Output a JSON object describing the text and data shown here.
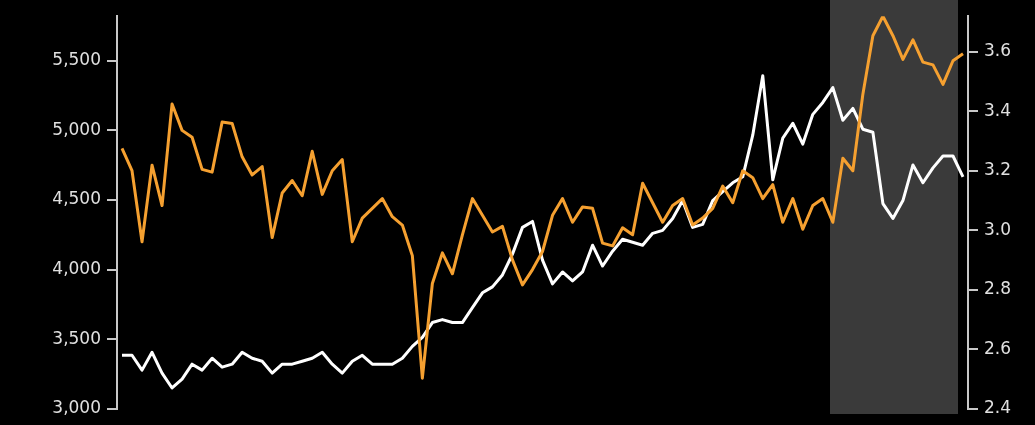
{
  "chart_data": {
    "type": "line",
    "categories": [
      null,
      null,
      null,
      null,
      null,
      null,
      null,
      null,
      null,
      null,
      null,
      null,
      null,
      null,
      null,
      null,
      null,
      null,
      null,
      null,
      null,
      null,
      null,
      null,
      null,
      null,
      null,
      null,
      null,
      null,
      null,
      null,
      null,
      null,
      null,
      null,
      null,
      null,
      null,
      null,
      null,
      null,
      null,
      null,
      null,
      null,
      null,
      null,
      null,
      null,
      null,
      null,
      null,
      null,
      null,
      null,
      null,
      null,
      null,
      null,
      null,
      null,
      null,
      null,
      null,
      null,
      null,
      null,
      null,
      null,
      null,
      null,
      null,
      null,
      null,
      null,
      null,
      null,
      null,
      null,
      null,
      null,
      null,
      null,
      null
    ],
    "ylim": [
      3000,
      5820
    ],
    "yticks": [
      {
        "value": 3000,
        "label": "3,000"
      },
      {
        "value": 3500,
        "label": "3,500"
      },
      {
        "value": 4000,
        "label": "4,000"
      },
      {
        "value": 4500,
        "label": "4,500"
      },
      {
        "value": 5000,
        "label": "5,000"
      },
      {
        "value": 5500,
        "label": "5,500"
      }
    ],
    "y2lim": [
      2.4,
      3.72
    ],
    "y2ticks": [
      2.4,
      2.6,
      2.8,
      {
        "value": 3,
        "label": "3.0"
      },
      3.2,
      3.4,
      3.6
    ],
    "grid": false,
    "legend": false,
    "line_style": "solid",
    "marker": "none",
    "series": [
      {
        "color": "#f5a030",
        "values": [
          4870,
          4710,
          4200,
          4750,
          4460,
          5190,
          5000,
          4950,
          4720,
          4700,
          5060,
          5050,
          4810,
          4680,
          4740,
          4230,
          4550,
          4640,
          4530,
          4850,
          4540,
          4710,
          4790,
          4200,
          4370,
          4440,
          4510,
          4380,
          4320,
          4100,
          3220,
          3900,
          4120,
          3970,
          4250,
          4510,
          4390,
          4270,
          4310,
          4070,
          3890,
          4000,
          4130,
          4390,
          4510,
          4340,
          4450,
          4440,
          4190,
          4170,
          4300,
          4250,
          4620,
          4480,
          4340,
          4460,
          4510,
          4320,
          4370,
          4440,
          4600,
          4480,
          4710,
          4660,
          4510,
          4610,
          4340,
          4510,
          4290,
          4460,
          4510,
          4340,
          4800,
          4710,
          5260,
          5680,
          5820,
          5680,
          5510,
          5650,
          5490,
          5470,
          5330,
          5500,
          5550
        ]
      },
      {
        "color": "#ffffff",
        "axis": "y2",
        "values": [
          2.58,
          2.58,
          2.53,
          2.59,
          2.52,
          2.47,
          2.5,
          2.55,
          2.53,
          2.57,
          2.54,
          2.55,
          2.59,
          2.57,
          2.56,
          2.52,
          2.55,
          2.55,
          2.56,
          2.57,
          2.59,
          2.55,
          2.52,
          2.56,
          2.58,
          2.55,
          2.55,
          2.55,
          2.57,
          2.61,
          2.64,
          2.69,
          2.7,
          2.69,
          2.69,
          2.74,
          2.79,
          2.81,
          2.85,
          2.92,
          3.01,
          3.03,
          2.9,
          2.82,
          2.86,
          2.83,
          2.86,
          2.95,
          2.88,
          2.93,
          2.97,
          2.96,
          2.95,
          2.99,
          3.0,
          3.04,
          3.1,
          3.01,
          3.02,
          3.1,
          3.13,
          3.16,
          3.18,
          3.32,
          3.52,
          3.17,
          3.31,
          3.36,
          3.29,
          3.39,
          3.43,
          3.48,
          3.37,
          3.41,
          3.34,
          3.33,
          3.09,
          3.04,
          3.1,
          3.22,
          3.16,
          3.21,
          3.25,
          3.25,
          3.18
        ]
      }
    ]
  }
}
